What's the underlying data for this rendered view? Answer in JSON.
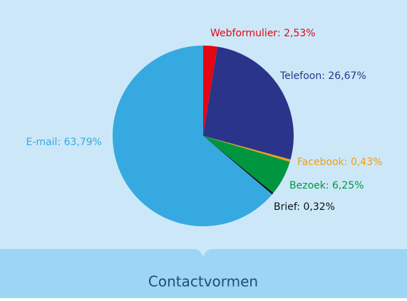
{
  "chart_data": {
    "type": "pie",
    "title": "Contactvormen",
    "values": [
      2.53,
      26.67,
      0.43,
      6.25,
      0.32,
      63.79
    ],
    "value_labels": [
      "Webformulier: 2,53%",
      "Telefoon: 26,67%",
      "Facebook: 0,43%",
      "Bezoek: 6,25%",
      "Brief: 0,32%",
      "E-mail: 63,79%"
    ],
    "colors": [
      "#e30613",
      "#29348a",
      "#f39c12",
      "#009640",
      "#111111",
      "#36a9e1"
    ]
  }
}
